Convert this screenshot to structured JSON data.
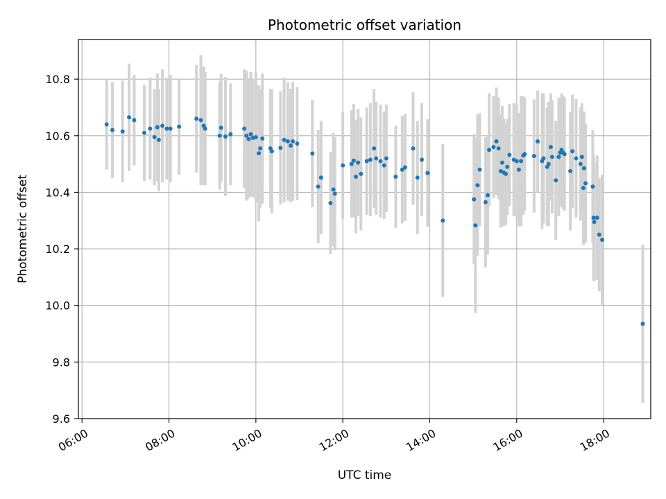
{
  "chart_data": {
    "type": "scatter",
    "title": "Photometric offset variation",
    "xlabel": "UTC time",
    "ylabel": "Photometric offset",
    "x_tick_labels": [
      "06:00",
      "08:00",
      "10:00",
      "12:00",
      "14:00",
      "16:00",
      "18:00"
    ],
    "y_tick_labels": [
      "9.6",
      "9.8",
      "10.0",
      "10.2",
      "10.4",
      "10.6",
      "10.8"
    ],
    "xlim": [
      "05:55",
      "19:05"
    ],
    "ylim": [
      9.6,
      10.94
    ],
    "grid": true,
    "colors": {
      "points": "#1f77b4",
      "error_bars": "#d3d3d3",
      "grid": "#b0b0b0"
    },
    "series": [
      {
        "points": [
          [
            "06:34",
            10.64,
            0.16
          ],
          [
            "06:42",
            10.62,
            0.17
          ],
          [
            "06:56",
            10.615,
            0.18
          ],
          [
            "07:05",
            10.665,
            0.19
          ],
          [
            "07:12",
            10.655,
            0.16
          ],
          [
            "07:26",
            10.61,
            0.17
          ],
          [
            "07:34",
            10.625,
            0.18
          ],
          [
            "07:40",
            10.595,
            0.17
          ],
          [
            "07:44",
            10.63,
            0.19
          ],
          [
            "07:46",
            10.585,
            0.18
          ],
          [
            "07:51",
            10.635,
            0.2
          ],
          [
            "07:57",
            10.625,
            0.18
          ],
          [
            "08:02",
            10.625,
            0.19
          ],
          [
            "08:14",
            10.632,
            0.17
          ],
          [
            "08:38",
            10.66,
            0.19
          ],
          [
            "08:44",
            10.655,
            0.23
          ],
          [
            "08:48",
            10.635,
            0.21
          ],
          [
            "08:50",
            10.625,
            0.2
          ],
          [
            "09:10",
            10.6,
            0.19
          ],
          [
            "09:12",
            10.628,
            0.19
          ],
          [
            "09:18",
            10.597,
            0.21
          ],
          [
            "09:25",
            10.605,
            0.18
          ],
          [
            "09:44",
            10.625,
            0.21
          ],
          [
            "09:47",
            10.6,
            0.23
          ],
          [
            "09:50",
            10.588,
            0.21
          ],
          [
            "09:53",
            10.605,
            0.22
          ],
          [
            "09:56",
            10.592,
            0.21
          ],
          [
            "10:00",
            10.595,
            0.23
          ],
          [
            "10:04",
            10.538,
            0.24
          ],
          [
            "10:06",
            10.555,
            0.21
          ],
          [
            "10:09",
            10.59,
            0.23
          ],
          [
            "10:20",
            10.555,
            0.21
          ],
          [
            "10:22",
            10.545,
            0.22
          ],
          [
            "10:34",
            10.557,
            0.2
          ],
          [
            "10:39",
            10.585,
            0.22
          ],
          [
            "10:44",
            10.58,
            0.21
          ],
          [
            "10:48",
            10.565,
            0.2
          ],
          [
            "10:51",
            10.58,
            0.21
          ],
          [
            "10:57",
            10.572,
            0.2
          ],
          [
            "11:18",
            10.537,
            0.19
          ],
          [
            "11:26",
            10.42,
            0.2
          ],
          [
            "11:30",
            10.452,
            0.2
          ],
          [
            "11:43",
            10.362,
            0.18
          ],
          [
            "11:47",
            10.41,
            0.2
          ],
          [
            "11:49",
            10.395,
            0.2
          ],
          [
            "12:00",
            10.495,
            0.19
          ],
          [
            "12:12",
            10.5,
            0.19
          ],
          [
            "12:15",
            10.512,
            0.2
          ],
          [
            "12:18",
            10.455,
            0.2
          ],
          [
            "12:21",
            10.505,
            0.19
          ],
          [
            "12:25",
            10.465,
            0.2
          ],
          [
            "12:33",
            10.51,
            0.19
          ],
          [
            "12:38",
            10.515,
            0.2
          ],
          [
            "12:43",
            10.555,
            0.21
          ],
          [
            "12:46",
            10.52,
            0.2
          ],
          [
            "12:52",
            10.51,
            0.2
          ],
          [
            "12:57",
            10.495,
            0.19
          ],
          [
            "13:00",
            10.52,
            0.19
          ],
          [
            "13:13",
            10.455,
            0.18
          ],
          [
            "13:22",
            10.48,
            0.19
          ],
          [
            "13:26",
            10.488,
            0.19
          ],
          [
            "13:37",
            10.555,
            0.2
          ],
          [
            "13:43",
            10.452,
            0.2
          ],
          [
            "13:49",
            10.515,
            0.2
          ],
          [
            "13:57",
            10.468,
            0.19
          ],
          [
            "14:18",
            10.3,
            0.27
          ],
          [
            "15:01",
            10.375,
            0.23
          ],
          [
            "15:03",
            10.283,
            0.31
          ],
          [
            "15:06",
            10.425,
            0.25
          ],
          [
            "15:09",
            10.48,
            0.2
          ],
          [
            "15:17",
            10.365,
            0.23
          ],
          [
            "15:20",
            10.39,
            0.21
          ],
          [
            "15:22",
            10.55,
            0.2
          ],
          [
            "15:28",
            10.56,
            0.18
          ],
          [
            "15:32",
            10.58,
            0.19
          ],
          [
            "15:35",
            10.555,
            0.18
          ],
          [
            "15:38",
            10.475,
            0.2
          ],
          [
            "15:40",
            10.505,
            0.2
          ],
          [
            "15:42",
            10.47,
            0.19
          ],
          [
            "15:45",
            10.465,
            0.18
          ],
          [
            "15:47",
            10.49,
            0.17
          ],
          [
            "15:50",
            10.532,
            0.18
          ],
          [
            "15:56",
            10.515,
            0.2
          ],
          [
            "16:00",
            10.51,
            0.2
          ],
          [
            "16:03",
            10.48,
            0.2
          ],
          [
            "16:06",
            10.51,
            0.23
          ],
          [
            "16:09",
            10.53,
            0.21
          ],
          [
            "16:11",
            10.535,
            0.2
          ],
          [
            "16:24",
            10.528,
            0.2
          ],
          [
            "16:29",
            10.58,
            0.18
          ],
          [
            "16:35",
            10.51,
            0.24
          ],
          [
            "16:37",
            10.52,
            0.23
          ],
          [
            "16:42",
            10.49,
            0.21
          ],
          [
            "16:44",
            10.5,
            0.22
          ],
          [
            "16:47",
            10.56,
            0.19
          ],
          [
            "16:49",
            10.525,
            0.2
          ],
          [
            "16:54",
            10.442,
            0.21
          ],
          [
            "16:58",
            10.525,
            0.21
          ],
          [
            "17:00",
            10.54,
            0.19
          ],
          [
            "17:02",
            10.55,
            0.2
          ],
          [
            "17:04",
            10.54,
            0.2
          ],
          [
            "17:06",
            10.535,
            0.2
          ],
          [
            "17:14",
            10.475,
            0.21
          ],
          [
            "17:17",
            10.545,
            0.2
          ],
          [
            "17:22",
            10.52,
            0.21
          ],
          [
            "17:28",
            10.5,
            0.2
          ],
          [
            "17:30",
            10.525,
            0.19
          ],
          [
            "17:32",
            10.415,
            0.2
          ],
          [
            "17:33",
            10.485,
            0.2
          ],
          [
            "17:35",
            10.432,
            0.21
          ],
          [
            "17:45",
            10.42,
            0.2
          ],
          [
            "17:46",
            10.31,
            0.22
          ],
          [
            "17:47",
            10.295,
            0.21
          ],
          [
            "17:51",
            10.31,
            0.22
          ],
          [
            "17:54",
            10.25,
            0.2
          ],
          [
            "17:58",
            10.232,
            0.23
          ],
          [
            "18:54",
            9.935,
            0.28
          ]
        ]
      }
    ]
  }
}
